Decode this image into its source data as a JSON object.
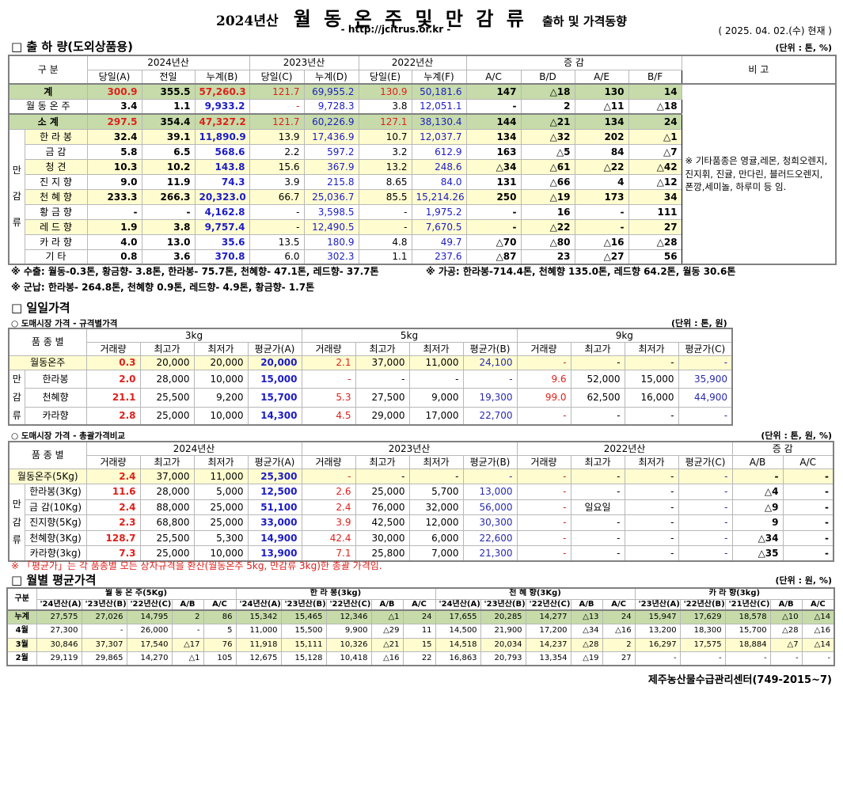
{
  "header": {
    "title_prefix": "2024년산",
    "title_main": "월 동 온 주 및 만 감 류",
    "title_suffix": "출하 및 가격동향",
    "url": "- http://jcitrus.or.kr -",
    "date": "( 2025. 04. 02.(수) 현재 )"
  },
  "shipment": {
    "section_title": "□ 출 하 량(도외상품용)",
    "unit": "(단위 : 톤, %)",
    "gubun": "구    분",
    "groups": [
      "2024년산",
      "2023년산",
      "2022년산",
      "증      감"
    ],
    "subheaders": [
      "당일(A)",
      "전일",
      "누계(B)",
      "당일(C)",
      "누계(D)",
      "당일(E)",
      "누계(F)",
      "A/C",
      "B/D",
      "A/E",
      "B/F"
    ],
    "remark_header": "비 고",
    "remark": "※ 기타품종은 영귤,레몬, 청희오렌지, 진지휘, 진귤, 만다린, 블러드오렌지, 폰깡,세미놀, 하루미 등 임.",
    "group_label": [
      "만",
      "감",
      "류"
    ],
    "rows": [
      {
        "name": "계",
        "style": "green",
        "values": [
          "300.9",
          "355.5",
          "57,260.3",
          "121.7",
          "69,955.2",
          "130.9",
          "50,181.6",
          "147",
          "△18",
          "130",
          "14"
        ]
      },
      {
        "name": "월 동 온 주",
        "style": "white",
        "values": [
          "3.4",
          "1.1",
          "9,933.2",
          "-",
          "9,728.3",
          "3.8",
          "12,051.1",
          "-",
          "2",
          "△11",
          "△18"
        ]
      },
      {
        "name": "소    계",
        "style": "green",
        "values": [
          "297.5",
          "354.4",
          "47,327.2",
          "121.7",
          "60,226.9",
          "127.1",
          "38,130.4",
          "144",
          "△21",
          "134",
          "24"
        ]
      },
      {
        "name": "한 라 봉",
        "style": "yellow",
        "values": [
          "32.4",
          "39.1",
          "11,890.9",
          "13.9",
          "17,436.9",
          "10.7",
          "12,037.7",
          "134",
          "△32",
          "202",
          "△1"
        ]
      },
      {
        "name": "금      감",
        "style": "white",
        "values": [
          "5.8",
          "6.5",
          "568.6",
          "2.2",
          "597.2",
          "3.2",
          "612.9",
          "163",
          "△5",
          "84",
          "△7"
        ]
      },
      {
        "name": "청      견",
        "style": "yellow",
        "values": [
          "10.3",
          "10.2",
          "143.8",
          "15.6",
          "367.9",
          "13.2",
          "248.6",
          "△34",
          "△61",
          "△22",
          "△42"
        ]
      },
      {
        "name": "진 지 향",
        "style": "white",
        "values": [
          "9.0",
          "11.9",
          "74.3",
          "3.9",
          "215.8",
          "8.65",
          "84.0",
          "131",
          "△66",
          "4",
          "△12"
        ]
      },
      {
        "name": "천 혜 향",
        "style": "yellow",
        "values": [
          "233.3",
          "266.3",
          "20,323.0",
          "66.7",
          "25,036.7",
          "85.5",
          "15,214.26",
          "250",
          "△19",
          "173",
          "34"
        ]
      },
      {
        "name": "황 금 향",
        "style": "white",
        "values": [
          "-",
          "-",
          "4,162.8",
          "-",
          "3,598.5",
          "-",
          "1,975.2",
          "-",
          "16",
          "-",
          "111"
        ]
      },
      {
        "name": "레 드 향",
        "style": "yellow",
        "values": [
          "1.9",
          "3.8",
          "9,757.4",
          "-",
          "12,490.5",
          "-",
          "7,670.5",
          "-",
          "△22",
          "-",
          "27"
        ]
      },
      {
        "name": "카 라 향",
        "style": "white",
        "values": [
          "4.0",
          "13.0",
          "35.6",
          "13.5",
          "180.9",
          "4.8",
          "49.7",
          "△70",
          "△80",
          "△16",
          "△28"
        ]
      },
      {
        "name": "기      타",
        "style": "white",
        "values": [
          "0.8",
          "3.6",
          "370.8",
          "6.0",
          "302.3",
          "1.1",
          "237.6",
          "△87",
          "23",
          "△27",
          "56"
        ]
      }
    ],
    "notes": {
      "export": "※ 수출: 월동-0.3톤, 황금향- 3.8톤, 한라봉- 75.7톤, 천혜향- 47.1톤, 레드향- 37.7톤",
      "processing": "※ 가공:  한라봉-714.4톤, 천혜향 135.0톤, 레드향 64.2톤, 월동 30.6톤",
      "military": "※ 군납: 한라봉- 264.8톤, 천혜향 0.9톤, 레드향- 4.9톤, 황금향- 1.7톤"
    }
  },
  "daily": {
    "section_title": "□ 일일가격",
    "spec": {
      "subtitle": "○ 도매시장 가격 - 규격별가격",
      "unit": "(단위 : 톤, 원)",
      "label": "품 종 별",
      "group_label": [
        "만",
        "감",
        "류"
      ],
      "groups": [
        "3kg",
        "5kg",
        "9kg"
      ],
      "subheaders": [
        "거래량",
        "최고가",
        "최저가",
        "평균가(A)",
        "거래량",
        "최고가",
        "최저가",
        "평균가(B)",
        "거래량",
        "최고가",
        "최저가",
        "평균가(C)"
      ],
      "rows": [
        {
          "name": "월동온주",
          "style": "yellow",
          "values": [
            "0.3",
            "20,000",
            "20,000",
            "20,000",
            "2.1",
            "37,000",
            "11,000",
            "24,100",
            "-",
            "-",
            "-",
            "-"
          ]
        },
        {
          "name": "한라봉",
          "style": "white",
          "values": [
            "2.0",
            "28,000",
            "10,000",
            "15,000",
            "-",
            "-",
            "-",
            "-",
            "9.6",
            "52,000",
            "15,000",
            "35,900"
          ]
        },
        {
          "name": "천혜향",
          "style": "white",
          "values": [
            "21.1",
            "25,500",
            "9,200",
            "15,700",
            "5.3",
            "27,500",
            "9,000",
            "19,300",
            "99.0",
            "62,500",
            "16,000",
            "44,900"
          ]
        },
        {
          "name": "카라향",
          "style": "white",
          "values": [
            "2.8",
            "25,000",
            "10,000",
            "14,300",
            "4.5",
            "29,000",
            "17,000",
            "22,700",
            "-",
            "-",
            "-",
            "-"
          ]
        }
      ]
    },
    "summary": {
      "subtitle": "○ 도매시장 가격 - 총괄가격비교",
      "unit": "(단위 : 톤, 원, %)",
      "label": "품 종 별",
      "group_label": [
        "만",
        "감",
        "류"
      ],
      "groups": [
        "2024년산",
        "2023년산",
        "2022년산",
        "증   감"
      ],
      "subheaders": [
        "거래량",
        "최고가",
        "최저가",
        "평균가(A)",
        "거래량",
        "최고가",
        "최저가",
        "평균가(B)",
        "거래량",
        "최고가",
        "최저가",
        "평균가(C)",
        "A/B",
        "A/C"
      ],
      "rows": [
        {
          "name": "월동온주(5Kg)",
          "style": "yellow",
          "values": [
            "2.4",
            "37,000",
            "11,000",
            "25,300",
            "-",
            "-",
            "-",
            "-",
            "-",
            "-",
            "-",
            "-",
            "-",
            "-"
          ]
        },
        {
          "name": "한라봉(3Kg)",
          "style": "white",
          "values": [
            "11.6",
            "28,000",
            "5,000",
            "12,500",
            "2.6",
            "25,000",
            "5,700",
            "13,000",
            "-",
            "-",
            "-",
            "-",
            "△4",
            "-"
          ]
        },
        {
          "name": "금 감(10Kg)",
          "style": "white",
          "values": [
            "2.4",
            "88,000",
            "25,000",
            "51,100",
            "2.4",
            "76,000",
            "32,000",
            "56,000",
            "-",
            "일요일",
            "-",
            "-",
            "△9",
            "-"
          ]
        },
        {
          "name": "진지향(5Kg)",
          "style": "white",
          "values": [
            "2.3",
            "68,800",
            "25,000",
            "33,000",
            "3.9",
            "42,500",
            "12,000",
            "30,300",
            "-",
            "-",
            "-",
            "-",
            "9",
            "-"
          ]
        },
        {
          "name": "천혜향(3Kg)",
          "style": "white",
          "values": [
            "128.7",
            "25,500",
            "5,300",
            "14,900",
            "42.4",
            "30,000",
            "6,000",
            "22,600",
            "-",
            "-",
            "-",
            "-",
            "△34",
            "-"
          ]
        },
        {
          "name": "카라향(3kg)",
          "style": "white",
          "values": [
            "7.3",
            "25,000",
            "10,000",
            "13,900",
            "7.1",
            "25,800",
            "7,000",
            "21,300",
            "-",
            "-",
            "-",
            "-",
            "△35",
            "-"
          ]
        }
      ],
      "note": "※  「평균가」는 각 품종별 모든 상자규격을 환산(월동온주 5kg, 만감류 3kg)한 총괄 가격임."
    }
  },
  "monthly": {
    "section_title": "□ 월별 평균가격",
    "unit": "(단위 : 원, %)",
    "label": "구분",
    "groups": [
      {
        "name": "월 동 온 주(5Kg)",
        "subheaders": [
          "'24년산(A)",
          "'23년산(B)",
          "'22년산(C)",
          "A/B",
          "A/C"
        ]
      },
      {
        "name": "한  라  봉(3kg)",
        "subheaders": [
          "'24년산(A)",
          "'23년산(B)",
          "'22년산(C)",
          "A/B",
          "A/C"
        ]
      },
      {
        "name": "천  혜  향(3Kg)",
        "subheaders": [
          "'24년산(A)",
          "'23년산(B)",
          "'22년산(C)",
          "A/B",
          "A/C"
        ]
      },
      {
        "name": "카  라  향(3kg)",
        "subheaders": [
          "'23년산(A)",
          "'22년산(B)",
          "'21년산(C)",
          "A/B",
          "A/C"
        ]
      }
    ],
    "rows": [
      {
        "name": "누계",
        "style": "green",
        "values": [
          "27,575",
          "27,026",
          "14,795",
          "2",
          "86",
          "15,342",
          "15,465",
          "12,346",
          "△1",
          "24",
          "17,655",
          "20,285",
          "14,277",
          "△13",
          "24",
          "15,947",
          "17,629",
          "18,578",
          "△10",
          "△14"
        ]
      },
      {
        "name": "4월",
        "style": "white",
        "values": [
          "27,300",
          "-",
          "26,000",
          "-",
          "5",
          "11,000",
          "15,500",
          "9,900",
          "△29",
          "11",
          "14,500",
          "21,900",
          "17,200",
          "△34",
          "△16",
          "13,200",
          "18,300",
          "15,700",
          "△28",
          "△16"
        ]
      },
      {
        "name": "3월",
        "style": "yellow",
        "values": [
          "30,846",
          "37,307",
          "17,540",
          "△17",
          "76",
          "11,918",
          "15,111",
          "10,326",
          "△21",
          "15",
          "14,518",
          "20,034",
          "14,237",
          "△28",
          "2",
          "16,297",
          "17,575",
          "18,884",
          "△7",
          "△14"
        ]
      },
      {
        "name": "2월",
        "style": "white",
        "values": [
          "29,119",
          "29,865",
          "14,270",
          "△1",
          "105",
          "12,675",
          "15,128",
          "10,418",
          "△16",
          "22",
          "16,863",
          "20,793",
          "13,354",
          "△19",
          "27",
          "-",
          "-",
          "-",
          "-",
          "-"
        ]
      }
    ],
    "footer": "제주농산물수급관리센터(749-2015~7)"
  },
  "colors": {
    "green_row": "#c6dba9",
    "yellow_row": "#fffdd0",
    "red": "#e0201b",
    "blue": "#1c1cc8"
  }
}
